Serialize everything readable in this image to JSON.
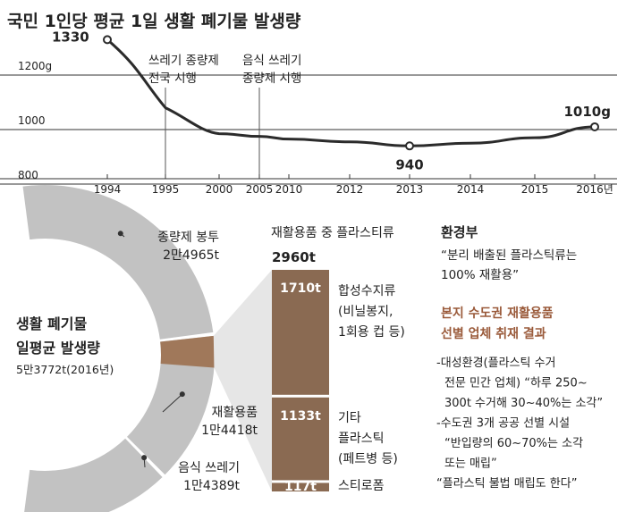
{
  "title": "국민 1인당 평균 1일 생활 폐기물 발생량",
  "colors": {
    "line": "#2b2b2b",
    "grid": "#333333",
    "ring": "#c2c2c2",
    "accent": "#a0785a",
    "bar": "#8a6a52",
    "heading_blue": "#1f5f8f",
    "heading_brown": "#9a5a3a"
  },
  "chart_data": {
    "type": "line",
    "x": [
      "1994",
      "1995",
      "2000",
      "2005",
      "2010",
      "2012",
      "2013",
      "2014",
      "2015",
      "2016년"
    ],
    "series": [
      {
        "values": [
          1330,
          1080,
          985,
          975,
          965,
          955,
          940,
          950,
          970,
          1010
        ]
      }
    ],
    "ylim": [
      800,
      1350
    ],
    "yticks": [
      "1200g",
      "1000",
      "800"
    ],
    "data_labels": [
      {
        "text": "1330",
        "index": 0
      },
      {
        "text": "940",
        "index": 6
      },
      {
        "text": "1010g",
        "index": 9
      }
    ],
    "annotations": [
      {
        "lines": [
          "쓰레기 종량제",
          "전국 시행"
        ],
        "index": 1
      },
      {
        "lines": [
          "음식 쓰레기",
          "종량제 시행"
        ],
        "index": 3
      }
    ]
  },
  "donut": {
    "title_lines": [
      "생활 폐기물",
      "일평균 발생량"
    ],
    "subtitle": "5만3772t(2016년)",
    "segments": [
      {
        "label": "종량제 봉투",
        "value_text": "2만4965t",
        "value": 24965
      },
      {
        "label": "재활용품",
        "value_text": "1만4418t",
        "value": 14418
      },
      {
        "label": "음식 쓰레기",
        "value_text": "1만4389t",
        "value": 14389
      }
    ],
    "highlight_value": 2960
  },
  "stack": {
    "header": "재활용품 중 플라스티류",
    "total": "2960t",
    "parts": [
      {
        "value": 1710,
        "value_text": "1710t",
        "label_lines": [
          "합성수지류",
          "(비닐봉지,",
          "1회용 컵 등)"
        ]
      },
      {
        "value": 1133,
        "value_text": "1133t",
        "label_lines": [
          "기타",
          "플라스틱",
          "(페트병 등)"
        ]
      },
      {
        "value": 117,
        "value_text": "117t",
        "label_lines": [
          "스티로폼"
        ]
      }
    ]
  },
  "notes": {
    "heading1": "환경부",
    "quote1_lines": [
      "“분리 배출된 플라스틱류는",
      "100% 재활용”"
    ],
    "heading2_lines": [
      "본지 수도권 재활용품",
      "선별 업체 취재 결과"
    ],
    "body_lines": [
      "-대성환경(플라스틱 수거",
      "전문 민간 업체) “하루 250~",
      "300t 수거해 30~40%는 소각”",
      "-수도권 3개 공공 선별 시설",
      "“반입량의 60~70%는 소각",
      "또는 매립”",
      "“플라스틱 불법 매립도 한다”"
    ]
  }
}
